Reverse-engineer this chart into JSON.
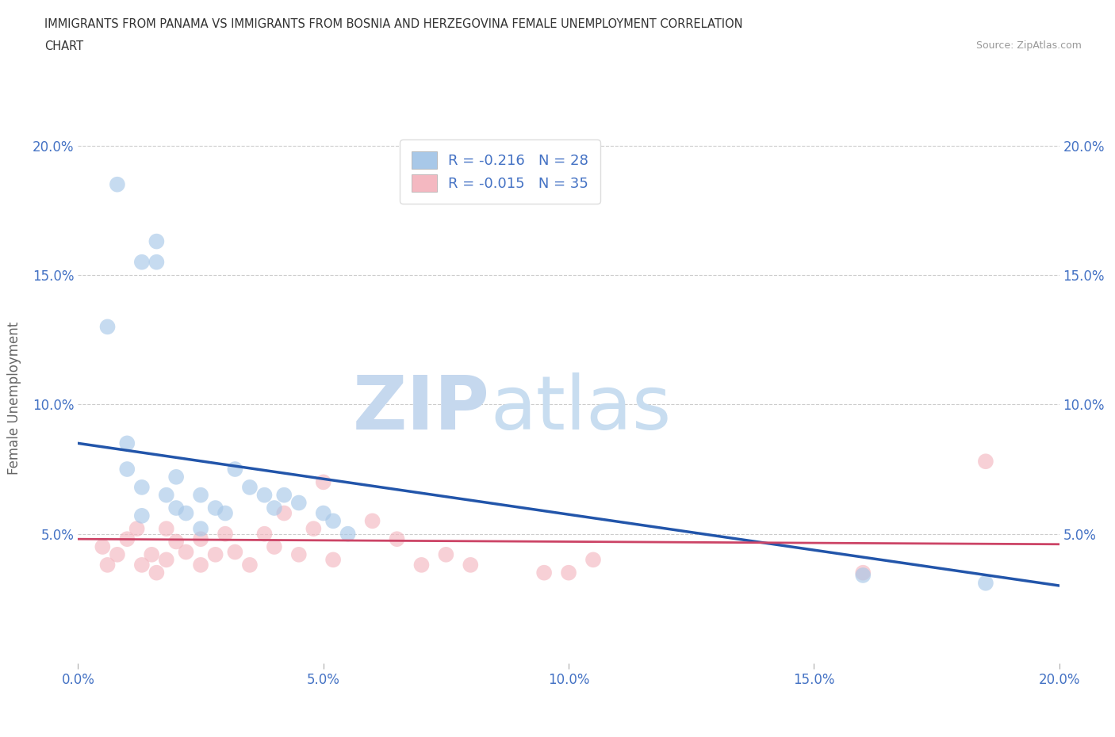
{
  "title_line1": "IMMIGRANTS FROM PANAMA VS IMMIGRANTS FROM BOSNIA AND HERZEGOVINA FEMALE UNEMPLOYMENT CORRELATION",
  "title_line2": "CHART",
  "source_text": "Source: ZipAtlas.com",
  "ylabel": "Female Unemployment",
  "xlim": [
    0.0,
    0.2
  ],
  "ylim": [
    0.0,
    0.205
  ],
  "xticks": [
    0.0,
    0.05,
    0.1,
    0.15,
    0.2
  ],
  "yticks": [
    0.05,
    0.1,
    0.15,
    0.2
  ],
  "xticklabels": [
    "0.0%",
    "5.0%",
    "10.0%",
    "15.0%",
    "20.0%"
  ],
  "yticklabels": [
    "5.0%",
    "10.0%",
    "15.0%",
    "20.0%"
  ],
  "panama_color": "#a8c8e8",
  "bosnia_color": "#f4b8c1",
  "panama_line_color": "#2255aa",
  "bosnia_line_color": "#cc4466",
  "legend_R_panama": "R = -0.216",
  "legend_N_panama": "N = 28",
  "legend_R_bosnia": "R = -0.015",
  "legend_N_bosnia": "N = 35",
  "watermark_zip": "ZIP",
  "watermark_atlas": "atlas",
  "panama_scatter_x": [
    0.008,
    0.013,
    0.016,
    0.016,
    0.006,
    0.01,
    0.01,
    0.013,
    0.013,
    0.018,
    0.02,
    0.02,
    0.022,
    0.025,
    0.025,
    0.028,
    0.03,
    0.032,
    0.035,
    0.038,
    0.04,
    0.042,
    0.045,
    0.05,
    0.052,
    0.055,
    0.16,
    0.185
  ],
  "panama_scatter_y": [
    0.185,
    0.155,
    0.155,
    0.163,
    0.13,
    0.085,
    0.075,
    0.068,
    0.057,
    0.065,
    0.06,
    0.072,
    0.058,
    0.065,
    0.052,
    0.06,
    0.058,
    0.075,
    0.068,
    0.065,
    0.06,
    0.065,
    0.062,
    0.058,
    0.055,
    0.05,
    0.034,
    0.031
  ],
  "bosnia_scatter_x": [
    0.005,
    0.006,
    0.008,
    0.01,
    0.012,
    0.013,
    0.015,
    0.016,
    0.018,
    0.018,
    0.02,
    0.022,
    0.025,
    0.025,
    0.028,
    0.03,
    0.032,
    0.035,
    0.038,
    0.04,
    0.042,
    0.045,
    0.048,
    0.05,
    0.052,
    0.06,
    0.065,
    0.07,
    0.075,
    0.08,
    0.095,
    0.1,
    0.105,
    0.16,
    0.185
  ],
  "bosnia_scatter_y": [
    0.045,
    0.038,
    0.042,
    0.048,
    0.052,
    0.038,
    0.042,
    0.035,
    0.052,
    0.04,
    0.047,
    0.043,
    0.038,
    0.048,
    0.042,
    0.05,
    0.043,
    0.038,
    0.05,
    0.045,
    0.058,
    0.042,
    0.052,
    0.07,
    0.04,
    0.055,
    0.048,
    0.038,
    0.042,
    0.038,
    0.035,
    0.035,
    0.04,
    0.035,
    0.078
  ],
  "panama_line_x": [
    0.0,
    0.2
  ],
  "panama_line_y": [
    0.085,
    0.03
  ],
  "bosnia_line_x": [
    0.0,
    0.2
  ],
  "bosnia_line_y": [
    0.048,
    0.046
  ],
  "bg_color": "#ffffff",
  "grid_color": "#cccccc",
  "title_color": "#333333",
  "axis_label_color": "#666666",
  "tick_color_blue": "#4472c4",
  "watermark_color_zip": "#c5d8ee",
  "watermark_color_atlas": "#c8ddf0"
}
